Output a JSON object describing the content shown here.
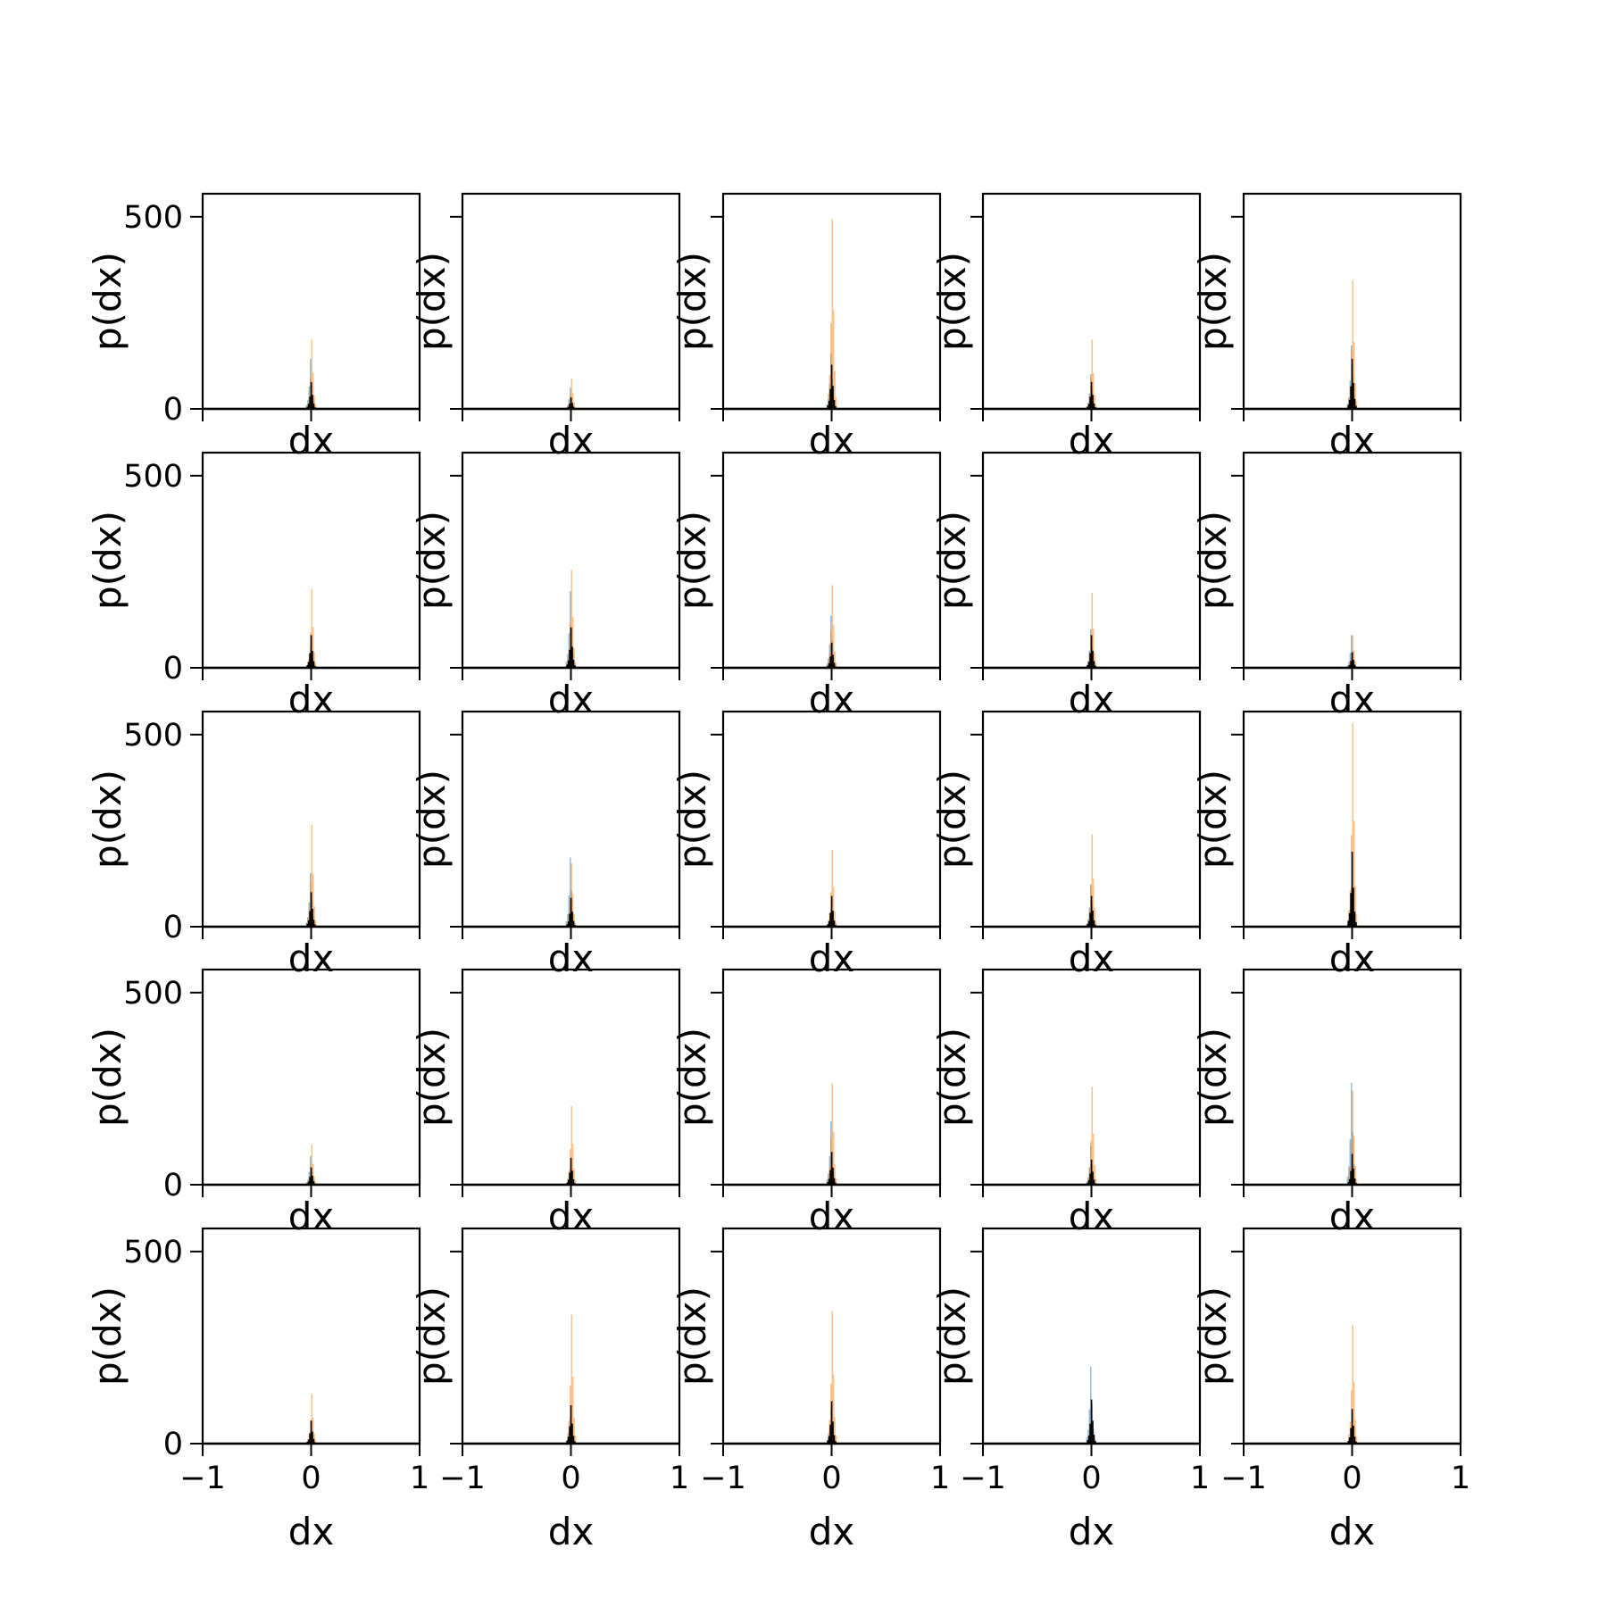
{
  "chart_data": {
    "type": "histogram-grid",
    "rows": 5,
    "cols": 5,
    "xlabel": "dx",
    "ylabel": "p(dx)",
    "xlim": [
      -1,
      1
    ],
    "ylim": [
      0,
      560
    ],
    "xticks": [
      -1,
      0,
      1
    ],
    "xtick_labels": [
      "−1",
      "0",
      "1"
    ],
    "yticks": [
      0,
      500
    ],
    "ytick_labels": [
      "0",
      "500"
    ],
    "grid": false,
    "series_colors": {
      "blue": "#1f77b4",
      "orange": "#ff7f0e",
      "black": "#000000"
    },
    "panels": [
      {
        "blue_peak": 130,
        "orange_peak": 180,
        "black_peak": 70
      },
      {
        "blue_peak": 55,
        "orange_peak": 80,
        "black_peak": 30
      },
      {
        "blue_peak": 145,
        "orange_peak": 495,
        "black_peak": 115
      },
      {
        "blue_peak": 90,
        "orange_peak": 180,
        "black_peak": 70
      },
      {
        "blue_peak": 165,
        "orange_peak": 335,
        "black_peak": 130
      },
      {
        "blue_peak": 55,
        "orange_peak": 205,
        "black_peak": 85
      },
      {
        "blue_peak": 200,
        "orange_peak": 255,
        "black_peak": 105
      },
      {
        "blue_peak": 135,
        "orange_peak": 215,
        "black_peak": 65
      },
      {
        "blue_peak": 100,
        "orange_peak": 195,
        "black_peak": 85
      },
      {
        "blue_peak": 85,
        "orange_peak": 85,
        "black_peak": 40
      },
      {
        "blue_peak": 140,
        "orange_peak": 265,
        "black_peak": 90
      },
      {
        "blue_peak": 180,
        "orange_peak": 165,
        "black_peak": 75
      },
      {
        "blue_peak": 45,
        "orange_peak": 200,
        "black_peak": 80
      },
      {
        "blue_peak": 110,
        "orange_peak": 240,
        "black_peak": 80
      },
      {
        "blue_peak": 100,
        "orange_peak": 530,
        "black_peak": 195
      },
      {
        "blue_peak": 75,
        "orange_peak": 105,
        "black_peak": 45
      },
      {
        "blue_peak": 40,
        "orange_peak": 205,
        "black_peak": 70
      },
      {
        "blue_peak": 165,
        "orange_peak": 265,
        "black_peak": 85
      },
      {
        "blue_peak": 100,
        "orange_peak": 255,
        "black_peak": 65
      },
      {
        "blue_peak": 265,
        "orange_peak": 245,
        "black_peak": 80
      },
      {
        "blue_peak": 20,
        "orange_peak": 130,
        "black_peak": 60
      },
      {
        "blue_peak": 70,
        "orange_peak": 335,
        "black_peak": 100
      },
      {
        "blue_peak": 90,
        "orange_peak": 345,
        "black_peak": 110
      },
      {
        "blue_peak": 200,
        "orange_peak": 40,
        "black_peak": 115
      },
      {
        "blue_peak": 15,
        "orange_peak": 310,
        "black_peak": 90
      }
    ]
  }
}
